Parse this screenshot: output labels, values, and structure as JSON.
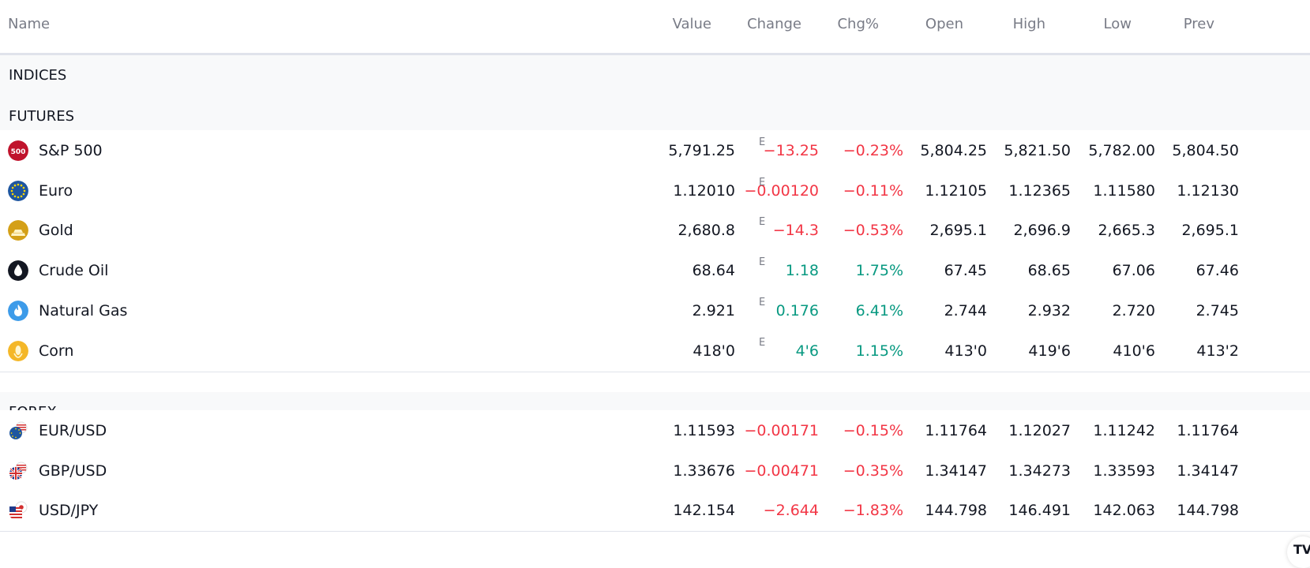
{
  "columns": {
    "name": "Name",
    "value": "Value",
    "change": "Change",
    "chg_pct": "Chg%",
    "open": "Open",
    "high": "High",
    "low": "Low",
    "prev": "Prev"
  },
  "sections": {
    "indices": "INDICES",
    "futures": "FUTURES",
    "forex": "FOREX"
  },
  "value_marker": "E",
  "futures": [
    {
      "name": "S&P 500",
      "icon": "sp500-icon",
      "icon_text": "500",
      "value": "5,791.25",
      "delayed": true,
      "change": "−13.25",
      "chg_pct": "−0.23%",
      "dir": "neg",
      "open": "5,804.25",
      "high": "5,821.50",
      "low": "5,782.00",
      "prev": "5,804.50"
    },
    {
      "name": "Euro",
      "icon": "euro-flag-icon",
      "value": "1.12010",
      "delayed": true,
      "change": "−0.00120",
      "chg_pct": "−0.11%",
      "dir": "neg",
      "open": "1.12105",
      "high": "1.12365",
      "low": "1.11580",
      "prev": "1.12130"
    },
    {
      "name": "Gold",
      "icon": "gold-bars-icon",
      "value": "2,680.8",
      "delayed": true,
      "change": "−14.3",
      "chg_pct": "−0.53%",
      "dir": "neg",
      "open": "2,695.1",
      "high": "2,696.9",
      "low": "2,665.3",
      "prev": "2,695.1"
    },
    {
      "name": "Crude Oil",
      "icon": "oil-drop-icon",
      "value": "68.64",
      "delayed": true,
      "change": "1.18",
      "chg_pct": "1.75%",
      "dir": "pos",
      "open": "67.45",
      "high": "68.65",
      "low": "67.06",
      "prev": "67.46"
    },
    {
      "name": "Natural Gas",
      "icon": "flame-icon",
      "value": "2.921",
      "delayed": true,
      "change": "0.176",
      "chg_pct": "6.41%",
      "dir": "pos",
      "open": "2.744",
      "high": "2.932",
      "low": "2.720",
      "prev": "2.745"
    },
    {
      "name": "Corn",
      "icon": "corn-icon",
      "value": "418'0",
      "delayed": true,
      "change": "4'6",
      "chg_pct": "1.15%",
      "dir": "pos",
      "open": "413'0",
      "high": "419'6",
      "low": "410'6",
      "prev": "413'2"
    }
  ],
  "forex": [
    {
      "name": "EUR/USD",
      "icon": "eur-usd-flags-icon",
      "value": "1.11593",
      "delayed": false,
      "change": "−0.00171",
      "chg_pct": "−0.15%",
      "dir": "neg",
      "open": "1.11764",
      "high": "1.12027",
      "low": "1.11242",
      "prev": "1.11764"
    },
    {
      "name": "GBP/USD",
      "icon": "gbp-usd-flags-icon",
      "value": "1.33676",
      "delayed": false,
      "change": "−0.00471",
      "chg_pct": "−0.35%",
      "dir": "neg",
      "open": "1.34147",
      "high": "1.34273",
      "low": "1.33593",
      "prev": "1.34147"
    },
    {
      "name": "USD/JPY",
      "icon": "usd-jpy-flags-icon",
      "value": "142.154",
      "delayed": false,
      "change": "−2.644",
      "chg_pct": "−1.83%",
      "dir": "neg",
      "open": "144.798",
      "high": "146.491",
      "low": "142.063",
      "prev": "144.798"
    }
  ],
  "logo": "TV",
  "colors": {
    "negative": "#f23645",
    "positive": "#089981",
    "header_text": "#787b86",
    "section_bg": "#f8f9fa",
    "sp500_red": "#c0132c",
    "euro_blue": "#1e56a0",
    "gold": "#d4a017",
    "gas_blue": "#3d9be9",
    "corn_yellow": "#f4b728"
  }
}
